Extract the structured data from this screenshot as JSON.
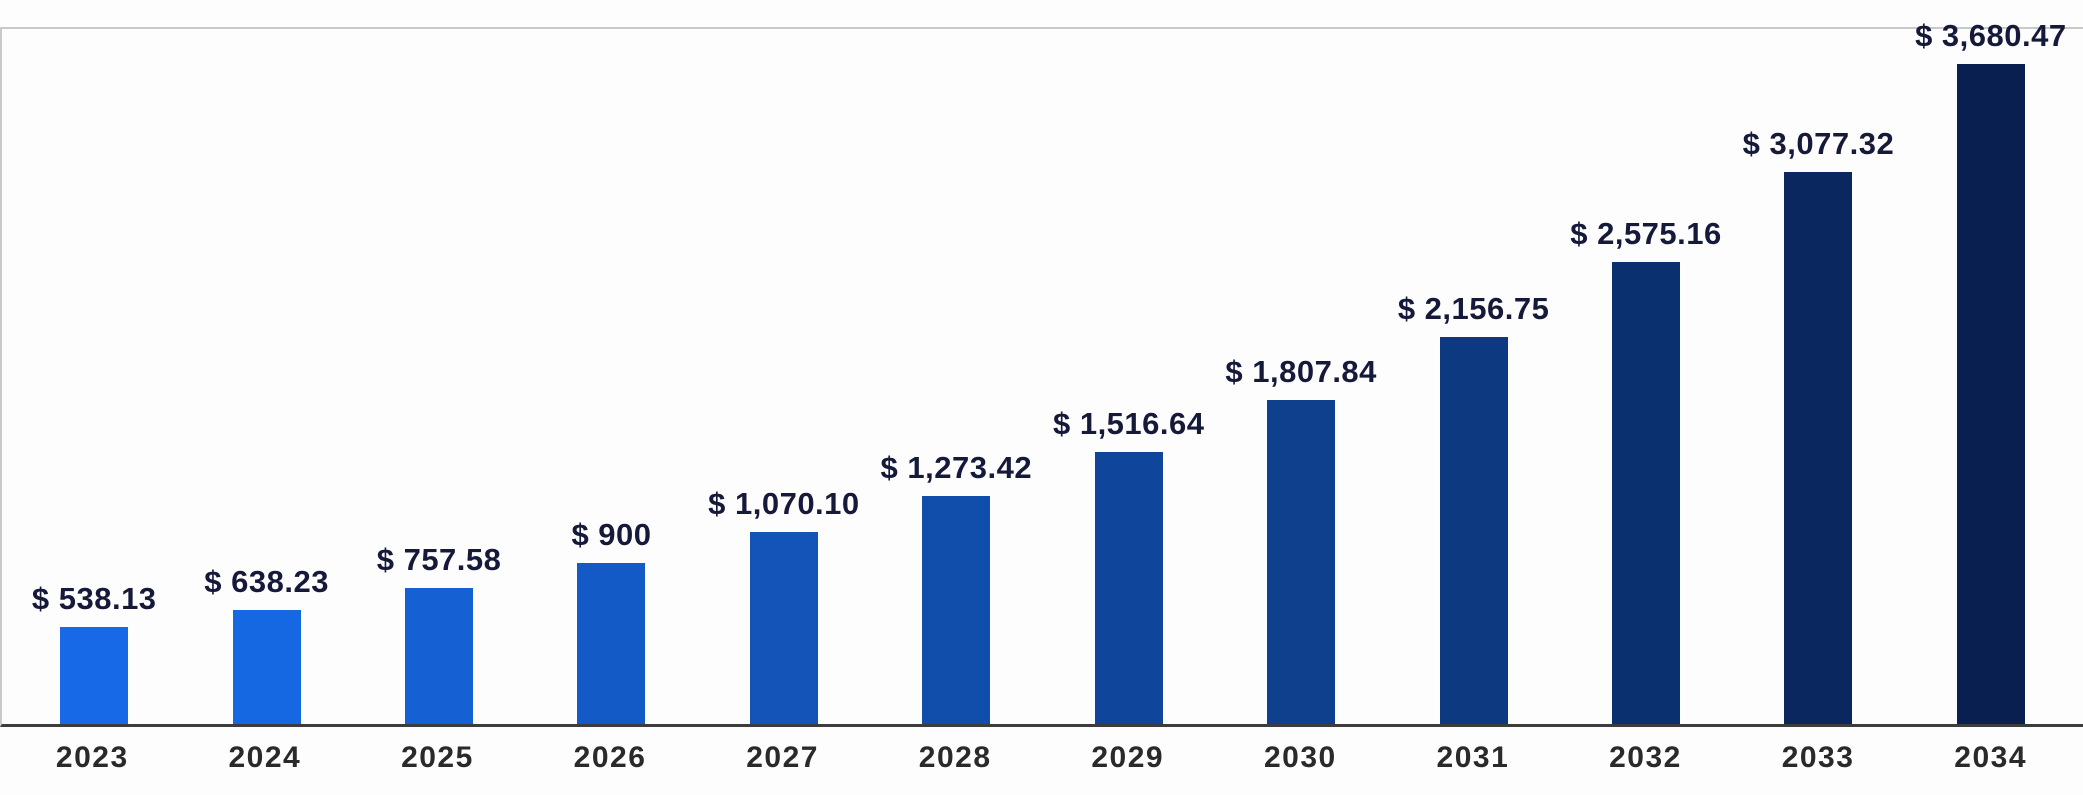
{
  "chart_data": {
    "type": "bar",
    "categories": [
      "2023",
      "2024",
      "2025",
      "2026",
      "2027",
      "2028",
      "2029",
      "2030",
      "2031",
      "2032",
      "2033",
      "2034"
    ],
    "values": [
      538.13,
      638.23,
      757.58,
      900,
      1070.1,
      1273.42,
      1516.64,
      1807.84,
      2156.75,
      2575.16,
      3077.32,
      3680.47
    ],
    "labels": [
      "$ 538.13",
      "$ 638.23",
      "$ 757.58",
      "$ 900",
      "$ 1,070.10",
      "$ 1,273.42",
      "$ 1,516.64",
      "$ 1,807.84",
      "$ 2,156.75",
      "$ 2,575.16",
      "$ 3,077.32",
      "$ 3,680.47"
    ],
    "currency_prefix": "$",
    "bar_colors": [
      "#1769e8",
      "#1667e2",
      "#1560d2",
      "#145ac6",
      "#1254b8",
      "#114daa",
      "#0f469c",
      "#0e408e",
      "#0d3980",
      "#0b306f",
      "#0a285f",
      "#091f50"
    ],
    "value_label_color": "#161a3a",
    "axis_label_color": "#2a2a2a",
    "xlabel": "",
    "ylabel": "",
    "ylim": [
      0,
      3700
    ],
    "grid": false,
    "legend_position": "none"
  }
}
